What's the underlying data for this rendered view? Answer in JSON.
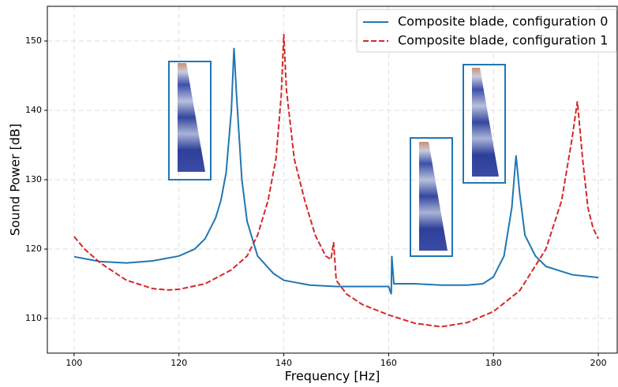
{
  "chart_data": {
    "type": "line",
    "xlabel": "Frequency [Hz]",
    "ylabel": "Sound Power [dB]",
    "xlim": [
      94.9,
      203.6
    ],
    "ylim": [
      105,
      155
    ],
    "xticks": [
      100,
      120,
      140,
      160,
      180,
      200
    ],
    "yticks": [
      110,
      120,
      130,
      140,
      150
    ],
    "grid": true,
    "legend": "upper right",
    "series": [
      {
        "name": "Composite blade, configuration 0",
        "color": "#1f77b4",
        "dash": "solid",
        "x": [
          100,
          105,
          110,
          115,
          120,
          123,
          125,
          127,
          128,
          129,
          130,
          130.5,
          131,
          132,
          133,
          135,
          138,
          140,
          145,
          150,
          155,
          160,
          160.5,
          160.6,
          161,
          165,
          170,
          175,
          178,
          180,
          182,
          183.5,
          184.3,
          185,
          186,
          188,
          190,
          195,
          200
        ],
        "values": [
          118.9,
          118.2,
          118.0,
          118.3,
          119.0,
          120.0,
          121.5,
          124.5,
          127.0,
          131.0,
          140.0,
          149.0,
          142.0,
          130.0,
          124.0,
          119.0,
          116.5,
          115.5,
          114.8,
          114.6,
          114.6,
          114.6,
          113.5,
          119.0,
          115.0,
          115.0,
          114.8,
          114.8,
          115.0,
          116.0,
          119.0,
          126.0,
          133.5,
          128.0,
          122.0,
          119.0,
          117.5,
          116.3,
          115.9
        ]
      },
      {
        "name": "Composite blade, configuration 1",
        "color": "#d62728",
        "dash": "dashed",
        "x": [
          100,
          102,
          105,
          110,
          115,
          118,
          120,
          125,
          130,
          133,
          135,
          137,
          138.5,
          139.5,
          140,
          140.5,
          142,
          144,
          146,
          148,
          149,
          149.5,
          150,
          152,
          155,
          160,
          165,
          170,
          175,
          180,
          185,
          190,
          193,
          195,
          196,
          197,
          198,
          199,
          200
        ],
        "values": [
          121.8,
          120.0,
          118.0,
          115.5,
          114.3,
          114.1,
          114.2,
          115.0,
          117.0,
          119.0,
          122.0,
          127.0,
          133.0,
          142.0,
          151.0,
          143.0,
          133.0,
          127.0,
          122.0,
          119.0,
          118.5,
          121.0,
          115.5,
          113.5,
          112.0,
          110.5,
          109.3,
          108.8,
          109.4,
          111.0,
          114.0,
          120.0,
          127.0,
          136.0,
          141.3,
          133.0,
          126.0,
          123.0,
          121.5
        ]
      }
    ]
  }
}
